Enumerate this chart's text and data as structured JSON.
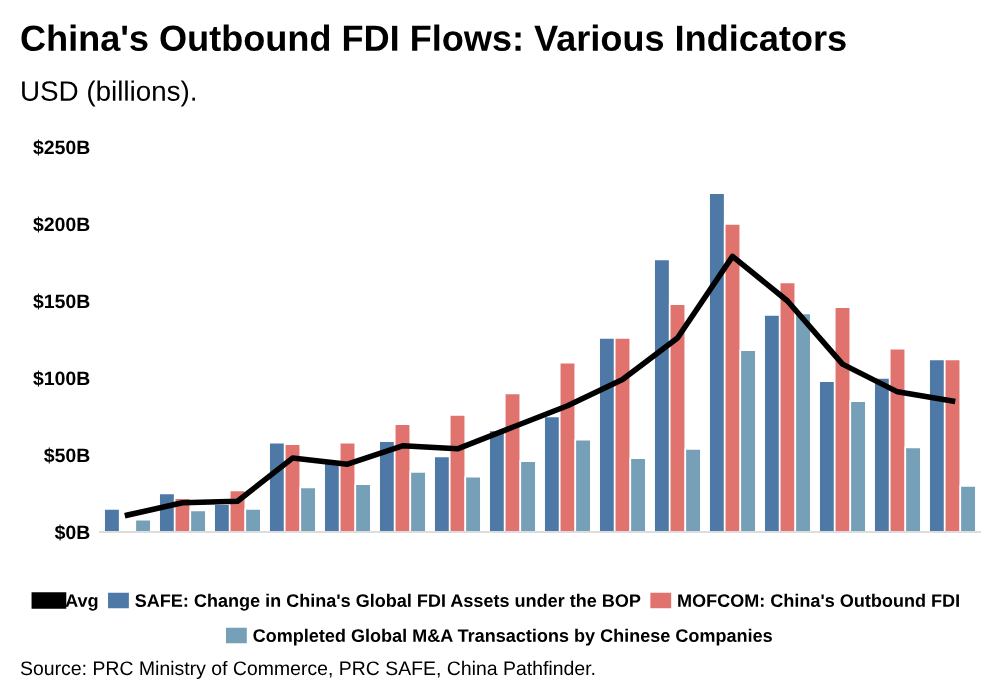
{
  "chart_data": {
    "type": "bar",
    "title": "China's Outbound FDI Flows: Various Indicators",
    "subtitle": "USD (billions).",
    "categories": [
      null,
      null,
      null,
      null,
      null,
      null,
      null,
      null,
      null,
      null,
      null,
      null,
      null,
      null,
      null,
      null
    ],
    "series": [
      {
        "name": "Avg",
        "type": "line",
        "color": "#000000",
        "values": [
          11,
          19,
          20,
          48,
          44,
          56,
          54,
          68,
          82,
          99,
          126,
          179,
          150,
          109,
          91,
          85
        ]
      },
      {
        "name": "SAFE: Change in China's Global FDI Assets under the BOP",
        "color": "#4e79a7",
        "values": [
          15,
          25,
          18,
          58,
          45,
          59,
          49,
          66,
          75,
          126,
          177,
          220,
          141,
          98,
          100,
          112
        ]
      },
      {
        "name": "MOFCOM: China's Outbound FDI",
        "color": "#e1736f",
        "values": [
          null,
          22,
          27,
          57,
          58,
          70,
          76,
          90,
          110,
          126,
          148,
          200,
          162,
          146,
          119,
          112
        ]
      },
      {
        "name": "Completed Global M&A Transactions by Chinese Companies",
        "color": "#76a0b7",
        "values": [
          8,
          14,
          15,
          29,
          31,
          39,
          36,
          46,
          60,
          48,
          54,
          118,
          142,
          85,
          55,
          30
        ]
      }
    ],
    "ylim": [
      0,
      250
    ],
    "yticks": [
      {
        "value": 0,
        "label": "$0B"
      },
      {
        "value": 50,
        "label": "$50B"
      },
      {
        "value": 100,
        "label": "$100B"
      },
      {
        "value": 150,
        "label": "$150B"
      },
      {
        "value": 200,
        "label": "$200B"
      },
      {
        "value": 250,
        "label": "$250B"
      }
    ],
    "grid": false,
    "legend": "bottom",
    "annotations": [
      "Source: PRC Ministry of Commerce, PRC SAFE, China Pathfinder."
    ]
  }
}
